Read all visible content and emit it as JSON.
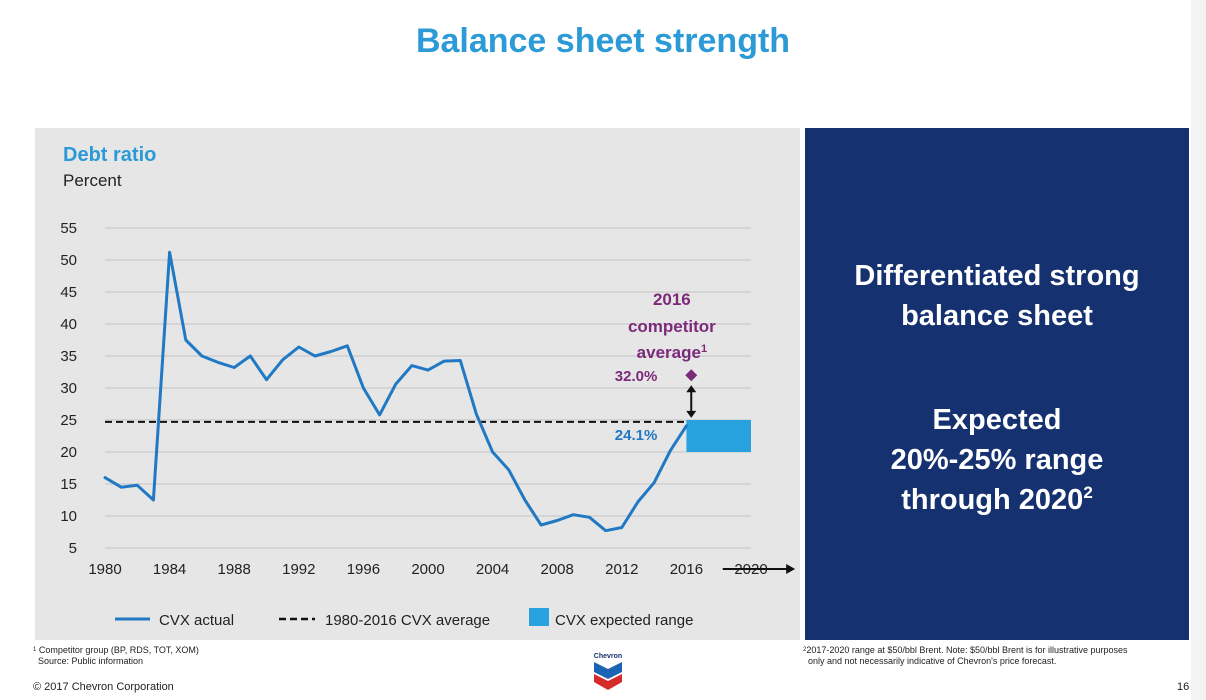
{
  "slide": {
    "title": "Balance sheet strength",
    "side_panel": {
      "line1": "Differentiated strong",
      "line2": "balance sheet",
      "line3": "Expected",
      "line4": "20%-25% range",
      "line5_prefix": "through 2020",
      "line5_sup": "2"
    },
    "footnote_left": {
      "sup": "1",
      "line1": "Competitor group (BP, RDS, TOT, XOM)",
      "line2": "Source: Public information"
    },
    "footnote_right": {
      "sup": "2",
      "line1": "2017-2020 range at $50/bbl Brent.  Note: $50/bbl Brent is for illustrative purposes",
      "line2": "only and not necessarily indicative of Chevron's price forecast."
    },
    "copyright": "© 2017 Chevron Corporation",
    "page_number": "16",
    "logo_text": "Chevron",
    "colors": {
      "title_blue": "#2b9ad6",
      "navy": "#15316f",
      "series_blue": "#2179c3",
      "range_blue": "#29a3df",
      "competitor_purple": "#7b2a7a"
    }
  },
  "chart_data": {
    "type": "line",
    "title": "Debt ratio",
    "subtitle": "Percent",
    "ylim": [
      5,
      55
    ],
    "yticks": [
      "5",
      "10",
      "15",
      "20",
      "25",
      "30",
      "35",
      "40",
      "45",
      "50",
      "55"
    ],
    "xlim": [
      1980,
      2020
    ],
    "xticks": [
      "1980",
      "1984",
      "1988",
      "1992",
      "1996",
      "2000",
      "2004",
      "2008",
      "2012",
      "2016",
      "2020"
    ],
    "grid": true,
    "legend_position": "bottom",
    "series": [
      {
        "name": "CVX actual",
        "x": [
          1980,
          1981,
          1982,
          1983,
          1984,
          1985,
          1986,
          1987,
          1988,
          1989,
          1990,
          1991,
          1992,
          1993,
          1994,
          1995,
          1996,
          1997,
          1998,
          1999,
          2000,
          2001,
          2002,
          2003,
          2004,
          2005,
          2006,
          2007,
          2008,
          2009,
          2010,
          2011,
          2012,
          2013,
          2014,
          2015,
          2016
        ],
        "y": [
          16,
          14.5,
          14.8,
          12.5,
          51.2,
          37.5,
          35,
          34,
          33.2,
          35,
          31.3,
          34.4,
          36.4,
          35,
          35.7,
          36.6,
          30,
          25.8,
          30.6,
          33.5,
          32.8,
          34.2,
          34.3,
          25.9,
          20,
          17.2,
          12.5,
          8.6,
          9.3,
          10.2,
          9.8,
          7.7,
          8.2,
          12.2,
          15.2,
          20.2,
          24.1
        ]
      },
      {
        "name": "1980-2016 CVX average",
        "value": 24.7
      },
      {
        "name": "CVX expected range",
        "x_range": [
          2016,
          2020
        ],
        "y_range": [
          20,
          25
        ]
      }
    ],
    "annotations": {
      "competitor_line1": "2016",
      "competitor_line2": "competitor",
      "competitor_line3": "average",
      "competitor_sup": "1",
      "competitor_value_label": "32.0%",
      "competitor_value": 32.0,
      "cvx_value_label": "24.1%",
      "cvx_value": 24.1
    }
  }
}
